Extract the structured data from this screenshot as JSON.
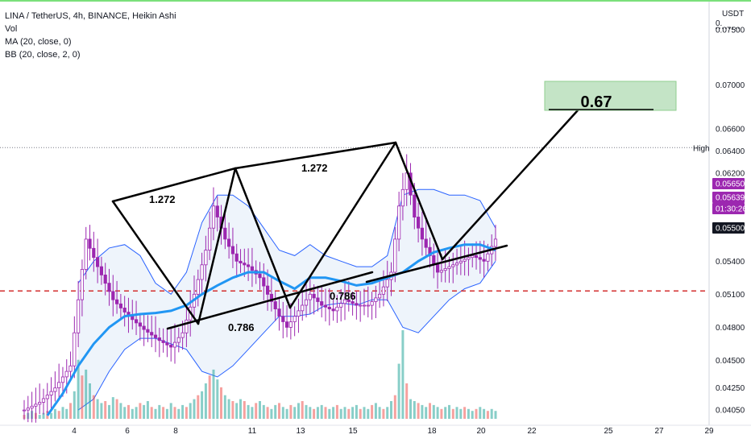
{
  "header": {
    "title": "LINA / TetherUS, 4h, BINANCE, Heikin Ashi",
    "indicators": [
      "Vol",
      "MA (20, close, 0)",
      "BB (20, close, 2, 0)"
    ]
  },
  "axis": {
    "currency": "USDT",
    "top_tick": "0.",
    "price_ticks": [
      "0.07500",
      "0.07000",
      "0.06600",
      "0.06400",
      "0.06200",
      "0.05400",
      "0.05100",
      "0.04800",
      "0.04500",
      "0.04250",
      "0.04050"
    ],
    "date_ticks": [
      "4",
      "6",
      "8",
      "11",
      "13",
      "15",
      "18",
      "20",
      "22",
      "25",
      "27",
      "29"
    ],
    "high_label": "High"
  },
  "price_badges": [
    {
      "text": "0.06400",
      "color": "#ffffff",
      "text_color": "#131722"
    },
    {
      "text": "0.05650",
      "color": "#9c27b0",
      "text_color": "#ffffff"
    },
    {
      "text": "0.05639",
      "color": "#9c27b0",
      "text_color": "#ffffff"
    },
    {
      "text": "01:30:26",
      "color": "#9c27b0",
      "text_color": "#ffffff"
    },
    {
      "text": "0.05500",
      "color": "#131722",
      "text_color": "#ffffff"
    }
  ],
  "annotations": {
    "fib_upper_left": "1.272",
    "fib_upper_right": "1.272",
    "fib_lower_left": "0.786",
    "fib_lower_right": "0.786",
    "target": "0.67"
  },
  "colors": {
    "ma": "#2196f3",
    "bb_band": "#2962ff",
    "bb_fill": "#e3edf8",
    "candle": "#9c27b0",
    "vol_up": "#26a69a",
    "vol_down": "#ef5350",
    "support": "#d32f2f",
    "target_box": "#a5d6a7",
    "pattern": "#000000"
  },
  "chart_data": {
    "type": "candlestick",
    "title": "LINA / TetherUS, 4h, BINANCE, Heikin Ashi",
    "xlabel": "",
    "ylabel": "USDT",
    "ylim": [
      0.0397,
      0.0774
    ],
    "x_ticks": [
      "4",
      "6",
      "8",
      "11",
      "13",
      "15",
      "18",
      "20",
      "22",
      "25",
      "27",
      "29"
    ],
    "close_path": [
      [
        0,
        0.0405
      ],
      [
        4,
        0.0412
      ],
      [
        8,
        0.0425
      ],
      [
        12,
        0.0445
      ],
      [
        14,
        0.0505
      ],
      [
        16,
        0.056
      ],
      [
        19,
        0.0535
      ],
      [
        23,
        0.0505
      ],
      [
        27,
        0.049
      ],
      [
        31,
        0.0478
      ],
      [
        35,
        0.0468
      ],
      [
        38,
        0.0462
      ],
      [
        41,
        0.0475
      ],
      [
        44,
        0.051
      ],
      [
        47,
        0.055
      ],
      [
        49,
        0.059
      ],
      [
        52,
        0.056
      ],
      [
        55,
        0.054
      ],
      [
        58,
        0.0535
      ],
      [
        61,
        0.0525
      ],
      [
        63,
        0.051
      ],
      [
        66,
        0.049
      ],
      [
        68,
        0.048
      ],
      [
        71,
        0.0495
      ],
      [
        74,
        0.051
      ],
      [
        77,
        0.05
      ],
      [
        80,
        0.0495
      ],
      [
        83,
        0.0505
      ],
      [
        86,
        0.05
      ],
      [
        89,
        0.05
      ],
      [
        92,
        0.051
      ],
      [
        95,
        0.053
      ],
      [
        97,
        0.059
      ],
      [
        99,
        0.062
      ],
      [
        101,
        0.058
      ],
      [
        103,
        0.056
      ],
      [
        105,
        0.0545
      ],
      [
        107,
        0.053
      ],
      [
        110,
        0.0535
      ],
      [
        113,
        0.054
      ],
      [
        116,
        0.0545
      ],
      [
        119,
        0.054
      ],
      [
        122,
        0.056
      ]
    ],
    "ma20": [
      [
        6,
        0.04
      ],
      [
        10,
        0.042
      ],
      [
        14,
        0.0445
      ],
      [
        18,
        0.0465
      ],
      [
        22,
        0.048
      ],
      [
        26,
        0.049
      ],
      [
        30,
        0.0492
      ],
      [
        34,
        0.0493
      ],
      [
        38,
        0.0495
      ],
      [
        42,
        0.05
      ],
      [
        46,
        0.051
      ],
      [
        50,
        0.0518
      ],
      [
        54,
        0.0525
      ],
      [
        58,
        0.053
      ],
      [
        62,
        0.053
      ],
      [
        66,
        0.0522
      ],
      [
        70,
        0.0515
      ],
      [
        74,
        0.0525
      ],
      [
        78,
        0.0525
      ],
      [
        82,
        0.0522
      ],
      [
        86,
        0.0518
      ],
      [
        90,
        0.052
      ],
      [
        94,
        0.0525
      ],
      [
        98,
        0.053
      ],
      [
        102,
        0.054
      ],
      [
        106,
        0.0548
      ],
      [
        110,
        0.0552
      ],
      [
        114,
        0.0555
      ],
      [
        118,
        0.0555
      ],
      [
        122,
        0.055
      ]
    ],
    "bb_upper": [
      [
        14,
        0.052
      ],
      [
        18,
        0.054
      ],
      [
        22,
        0.0552
      ],
      [
        26,
        0.0555
      ],
      [
        30,
        0.0545
      ],
      [
        34,
        0.052
      ],
      [
        38,
        0.051
      ],
      [
        42,
        0.053
      ],
      [
        46,
        0.0575
      ],
      [
        50,
        0.06
      ],
      [
        54,
        0.06
      ],
      [
        58,
        0.059
      ],
      [
        62,
        0.057
      ],
      [
        66,
        0.055
      ],
      [
        70,
        0.0545
      ],
      [
        74,
        0.0555
      ],
      [
        78,
        0.0545
      ],
      [
        82,
        0.054
      ],
      [
        86,
        0.0535
      ],
      [
        90,
        0.0535
      ],
      [
        94,
        0.0545
      ],
      [
        98,
        0.06
      ],
      [
        102,
        0.0605
      ],
      [
        106,
        0.0605
      ],
      [
        110,
        0.06
      ],
      [
        114,
        0.06
      ],
      [
        118,
        0.0595
      ],
      [
        122,
        0.057
      ]
    ],
    "bb_lower": [
      [
        14,
        0.0405
      ],
      [
        18,
        0.0415
      ],
      [
        22,
        0.044
      ],
      [
        26,
        0.046
      ],
      [
        30,
        0.047
      ],
      [
        34,
        0.047
      ],
      [
        38,
        0.0465
      ],
      [
        42,
        0.046
      ],
      [
        46,
        0.044
      ],
      [
        50,
        0.0435
      ],
      [
        54,
        0.0445
      ],
      [
        58,
        0.046
      ],
      [
        62,
        0.0475
      ],
      [
        66,
        0.049
      ],
      [
        70,
        0.049
      ],
      [
        74,
        0.0492
      ],
      [
        78,
        0.05
      ],
      [
        82,
        0.0502
      ],
      [
        86,
        0.05
      ],
      [
        90,
        0.0505
      ],
      [
        94,
        0.0505
      ],
      [
        98,
        0.048
      ],
      [
        102,
        0.0475
      ],
      [
        106,
        0.049
      ],
      [
        110,
        0.0505
      ],
      [
        114,
        0.0515
      ],
      [
        118,
        0.052
      ],
      [
        122,
        0.054
      ]
    ],
    "volume": [
      [
        0,
        2
      ],
      [
        1,
        3
      ],
      [
        2,
        4
      ],
      [
        3,
        3
      ],
      [
        4,
        2
      ],
      [
        5,
        3
      ],
      [
        6,
        4
      ],
      [
        7,
        3
      ],
      [
        8,
        5
      ],
      [
        9,
        4
      ],
      [
        10,
        6
      ],
      [
        11,
        5
      ],
      [
        12,
        8
      ],
      [
        13,
        14
      ],
      [
        14,
        30
      ],
      [
        15,
        22
      ],
      [
        16,
        25
      ],
      [
        17,
        18
      ],
      [
        18,
        12
      ],
      [
        19,
        10
      ],
      [
        20,
        8
      ],
      [
        21,
        9
      ],
      [
        22,
        7
      ],
      [
        23,
        11
      ],
      [
        24,
        10
      ],
      [
        25,
        8
      ],
      [
        26,
        6
      ],
      [
        27,
        7
      ],
      [
        28,
        5
      ],
      [
        29,
        6
      ],
      [
        30,
        8
      ],
      [
        31,
        7
      ],
      [
        32,
        9
      ],
      [
        33,
        6
      ],
      [
        34,
        5
      ],
      [
        35,
        7
      ],
      [
        36,
        6
      ],
      [
        37,
        5
      ],
      [
        38,
        8
      ],
      [
        39,
        6
      ],
      [
        40,
        5
      ],
      [
        41,
        7
      ],
      [
        42,
        6
      ],
      [
        43,
        8
      ],
      [
        44,
        10
      ],
      [
        45,
        12
      ],
      [
        46,
        14
      ],
      [
        47,
        18
      ],
      [
        48,
        22
      ],
      [
        49,
        25
      ],
      [
        50,
        20
      ],
      [
        51,
        16
      ],
      [
        52,
        12
      ],
      [
        53,
        10
      ],
      [
        54,
        9
      ],
      [
        55,
        8
      ],
      [
        56,
        10
      ],
      [
        57,
        9
      ],
      [
        58,
        7
      ],
      [
        59,
        6
      ],
      [
        60,
        8
      ],
      [
        61,
        9
      ],
      [
        62,
        7
      ],
      [
        63,
        6
      ],
      [
        64,
        5
      ],
      [
        65,
        7
      ],
      [
        66,
        8
      ],
      [
        67,
        6
      ],
      [
        68,
        5
      ],
      [
        69,
        7
      ],
      [
        70,
        6
      ],
      [
        71,
        8
      ],
      [
        72,
        9
      ],
      [
        73,
        7
      ],
      [
        74,
        6
      ],
      [
        75,
        5
      ],
      [
        76,
        6
      ],
      [
        77,
        7
      ],
      [
        78,
        6
      ],
      [
        79,
        5
      ],
      [
        80,
        6
      ],
      [
        81,
        7
      ],
      [
        82,
        5
      ],
      [
        83,
        6
      ],
      [
        84,
        5
      ],
      [
        85,
        6
      ],
      [
        86,
        7
      ],
      [
        87,
        5
      ],
      [
        88,
        6
      ],
      [
        89,
        5
      ],
      [
        90,
        7
      ],
      [
        91,
        8
      ],
      [
        92,
        6
      ],
      [
        93,
        5
      ],
      [
        94,
        6
      ],
      [
        95,
        9
      ],
      [
        96,
        12
      ],
      [
        97,
        28
      ],
      [
        98,
        45
      ],
      [
        99,
        18
      ],
      [
        100,
        10
      ],
      [
        101,
        9
      ],
      [
        102,
        8
      ],
      [
        103,
        7
      ],
      [
        104,
        6
      ],
      [
        105,
        8
      ],
      [
        106,
        7
      ],
      [
        107,
        6
      ],
      [
        108,
        5
      ],
      [
        109,
        6
      ],
      [
        110,
        7
      ],
      [
        111,
        5
      ],
      [
        112,
        6
      ],
      [
        113,
        5
      ],
      [
        114,
        6
      ],
      [
        115,
        5
      ],
      [
        116,
        4
      ],
      [
        117,
        5
      ],
      [
        118,
        6
      ],
      [
        119,
        5
      ],
      [
        120,
        4
      ],
      [
        121,
        5
      ],
      [
        122,
        4
      ]
    ]
  }
}
